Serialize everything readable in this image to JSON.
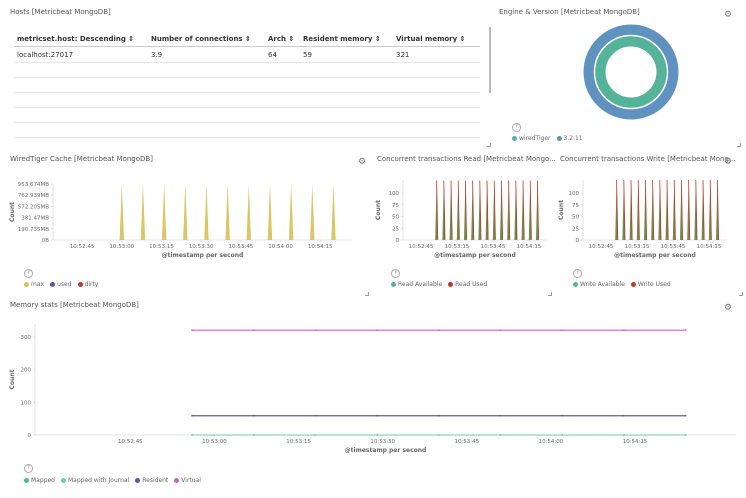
{
  "hosts_panel": {
    "title": "Hosts [Metricbeat MongoDB]",
    "columns": [
      "metricset.host: Descending ⇕",
      "Number of connections ⇕",
      "Arch ⇕",
      "Resident memory ⇕",
      "Virtual memory ⇕"
    ],
    "rows": [
      [
        "localhost:27017",
        "3.9",
        "64",
        "59",
        "321"
      ]
    ]
  },
  "engine_panel": {
    "title": "Engine & Version [Metricbeat MongoDB]",
    "legend": [
      {
        "label": "wiredTiger",
        "color": "#54b399"
      },
      {
        "label": "3.2.11",
        "color": "#6092c0"
      }
    ],
    "chart_data": {
      "type": "pie",
      "rings": [
        {
          "name": "engine",
          "categories": [
            "wiredTiger"
          ],
          "values": [
            1
          ],
          "color": "#54b399"
        },
        {
          "name": "version",
          "categories": [
            "3.2.11"
          ],
          "values": [
            1
          ],
          "color": "#6092c0"
        }
      ]
    }
  },
  "wt_panel": {
    "title": "WiredTiger Cache [Metricbeat MongoDB]",
    "ylabel": "Count",
    "xlabel": "@timestamp per second",
    "yticks": [
      "953.674MB",
      "762.939MB",
      "572.205MB",
      "381.47MB",
      "190.735MB",
      "0B"
    ],
    "xticks": [
      "10:52:45",
      "10:53:00",
      "10:53:15",
      "10:53:30",
      "10:53:45",
      "10:54:00",
      "10:54:15"
    ],
    "legend": [
      {
        "label": "max",
        "color": "#d6bf57"
      },
      {
        "label": "used",
        "color": "#6054b0"
      },
      {
        "label": "dirty",
        "color": "#c0392b"
      }
    ],
    "chart_data": {
      "type": "area",
      "title": "WiredTiger Cache [Metricbeat MongoDB]",
      "xlabel": "@timestamp per second",
      "ylabel": "Count",
      "ylim": [
        0,
        953.674
      ],
      "x": [
        "10:53:00",
        "10:53:08",
        "10:53:16",
        "10:53:24",
        "10:53:32",
        "10:53:40",
        "10:53:48",
        "10:53:56",
        "10:54:04",
        "10:54:12",
        "10:54:20"
      ],
      "series": [
        {
          "name": "max",
          "values": [
            953.674,
            953.674,
            953.674,
            953.674,
            953.674,
            953.674,
            953.674,
            953.674,
            953.674,
            953.674,
            953.674
          ]
        },
        {
          "name": "used",
          "values": [
            0,
            0,
            0,
            0,
            0,
            0,
            0,
            0,
            0,
            0,
            0
          ]
        },
        {
          "name": "dirty",
          "values": [
            0,
            0,
            0,
            0,
            0,
            0,
            0,
            0,
            0,
            0,
            0
          ]
        }
      ]
    }
  },
  "read_panel": {
    "title": "Concurrent transactions Read [Metricbeat Mongo...",
    "ylabel": "Count",
    "xlabel": "@timestamp per second",
    "yticks": [
      "100",
      "75",
      "50",
      "25",
      "0"
    ],
    "xticks": [
      "10:52:45",
      "10:53:15",
      "10:53:45",
      "10:54:15"
    ],
    "legend": [
      {
        "label": "Read Available",
        "color": "#54b399"
      },
      {
        "label": "Read Used",
        "color": "#c0392b"
      }
    ],
    "chart_data": {
      "type": "area",
      "xlabel": "@timestamp per second",
      "ylabel": "Count",
      "ylim": [
        0,
        128
      ],
      "x": [
        "10:52:58",
        "10:53:04",
        "10:53:10",
        "10:53:16",
        "10:53:22",
        "10:53:28",
        "10:53:34",
        "10:53:40",
        "10:53:46",
        "10:53:52",
        "10:53:58",
        "10:54:04",
        "10:54:10",
        "10:54:16",
        "10:54:22"
      ],
      "series": [
        {
          "name": "Read Available",
          "values": [
            127,
            127,
            127,
            127,
            127,
            127,
            127,
            127,
            127,
            127,
            127,
            127,
            127,
            127,
            127
          ]
        },
        {
          "name": "Read Used",
          "values": [
            1,
            1,
            1,
            1,
            1,
            1,
            1,
            1,
            1,
            1,
            1,
            1,
            1,
            1,
            1
          ]
        }
      ]
    }
  },
  "write_panel": {
    "title": "Concurrent transactions Write [Metricbeat Mong...",
    "ylabel": "Count",
    "xlabel": "@timestamp per second",
    "yticks": [
      "100",
      "75",
      "50",
      "25",
      "0"
    ],
    "xticks": [
      "10:52:45",
      "10:53:15",
      "10:53:45",
      "10:54:15"
    ],
    "legend": [
      {
        "label": "Write Available",
        "color": "#54b399"
      },
      {
        "label": "Write Used",
        "color": "#c0392b"
      }
    ],
    "chart_data": {
      "type": "area",
      "xlabel": "@timestamp per second",
      "ylabel": "Count",
      "ylim": [
        0,
        128
      ],
      "x": [
        "10:52:58",
        "10:53:04",
        "10:53:10",
        "10:53:16",
        "10:53:22",
        "10:53:28",
        "10:53:34",
        "10:53:40",
        "10:53:46",
        "10:53:52",
        "10:53:58",
        "10:54:04",
        "10:54:10",
        "10:54:16",
        "10:54:22"
      ],
      "series": [
        {
          "name": "Write Available",
          "values": [
            128,
            128,
            128,
            128,
            128,
            128,
            128,
            128,
            128,
            128,
            128,
            128,
            128,
            128,
            128
          ]
        },
        {
          "name": "Write Used",
          "values": [
            0,
            0,
            0,
            0,
            0,
            0,
            0,
            0,
            0,
            0,
            0,
            0,
            0,
            0,
            0
          ]
        }
      ]
    }
  },
  "mem_panel": {
    "title": "Memory stats [Metricbeat MongoDB]",
    "ylabel": "Count",
    "xlabel": "@timestamp per second",
    "yticks": [
      "300",
      "200",
      "100",
      "0"
    ],
    "xticks": [
      "10:52:45",
      "10:53:00",
      "10:53:15",
      "10:53:30",
      "10:53:45",
      "10:54:00",
      "10:54:15"
    ],
    "legend": [
      {
        "label": "Mapped",
        "color": "#54b399"
      },
      {
        "label": "Mapped with Journal",
        "color": "#6dccb1"
      },
      {
        "label": "Resident",
        "color": "#6054b0"
      },
      {
        "label": "Virtual",
        "color": "#c26bb8"
      }
    ],
    "chart_data": {
      "type": "line",
      "xlabel": "@timestamp per second",
      "ylabel": "Count",
      "ylim": [
        0,
        340
      ],
      "x": [
        "10:52:56",
        "10:53:07",
        "10:53:18",
        "10:53:29",
        "10:53:40",
        "10:53:51",
        "10:54:02",
        "10:54:13",
        "10:54:24"
      ],
      "series": [
        {
          "name": "Mapped",
          "values": [
            0,
            0,
            0,
            0,
            0,
            0,
            0,
            0,
            0
          ]
        },
        {
          "name": "Mapped with Journal",
          "values": [
            0,
            0,
            0,
            0,
            0,
            0,
            0,
            0,
            0
          ]
        },
        {
          "name": "Resident",
          "values": [
            59,
            59,
            59,
            59,
            59,
            59,
            59,
            59,
            59
          ]
        },
        {
          "name": "Virtual",
          "values": [
            321,
            321,
            321,
            321,
            321,
            321,
            321,
            321,
            321
          ]
        }
      ]
    }
  }
}
